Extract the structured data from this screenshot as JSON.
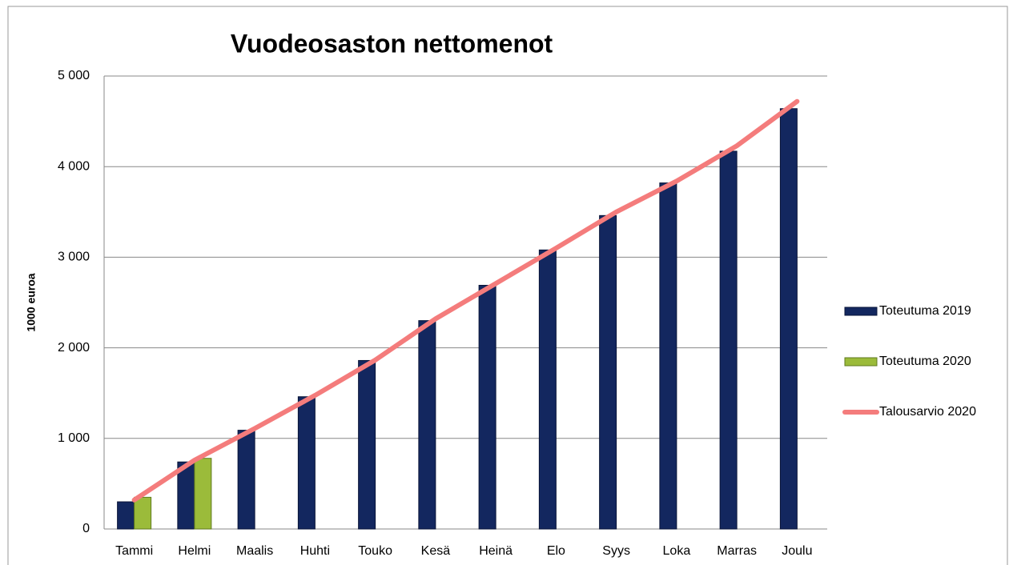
{
  "chart_data": {
    "type": "bar",
    "title": "Vuodeosaston nettomenot",
    "y_label": "1000 euroa",
    "categories": [
      "Tammi",
      "Helmi",
      "Maalis",
      "Huhti",
      "Touko",
      "Kesä",
      "Heinä",
      "Elo",
      "Syys",
      "Loka",
      "Marras",
      "Joulu"
    ],
    "series": [
      {
        "name": "Toteutuma 2019",
        "type": "bar",
        "color": "#13275f",
        "values": [
          300,
          740,
          1090,
          1460,
          1860,
          2300,
          2690,
          3080,
          3460,
          3820,
          4170,
          4640
        ]
      },
      {
        "name": "Toteutuma 2020",
        "type": "bar",
        "color": "#9bbb3a",
        "values": [
          350,
          780,
          null,
          null,
          null,
          null,
          null,
          null,
          null,
          null,
          null,
          null
        ]
      },
      {
        "name": "Talousarvio 2020",
        "type": "line",
        "color": "#f47c7c",
        "values": [
          320,
          760,
          1110,
          1475,
          1865,
          2320,
          2710,
          3100,
          3500,
          3840,
          4230,
          4720
        ]
      }
    ],
    "ylim": [
      0,
      5000
    ],
    "yticks": [
      0,
      {
        "value": 1000,
        "label": "1 000"
      },
      {
        "value": 2000,
        "label": "2 000"
      },
      {
        "value": 3000,
        "label": "3 000"
      },
      {
        "value": 4000,
        "label": "4 000"
      },
      {
        "value": 5000,
        "label": "5 000"
      }
    ],
    "grid": true,
    "legend": "right"
  }
}
